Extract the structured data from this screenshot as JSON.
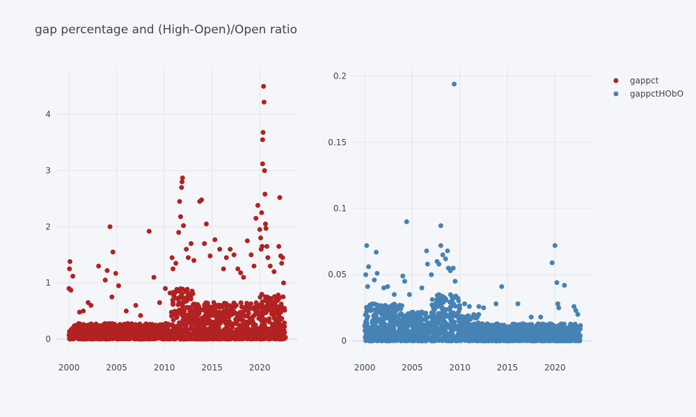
{
  "title": "gap percentage and (High-Open)/Open ratio",
  "colors": {
    "gappct": "#b22222",
    "gappctHObO": "#4682b4",
    "grid": "#e1e5ed",
    "background": "#f5f6f9"
  },
  "chart_data": [
    {
      "type": "scatter",
      "name": "gappct",
      "xlim": [
        1998.6,
        2024.0
      ],
      "ylim": [
        -0.15,
        4.8
      ],
      "x_ticks": [
        2000,
        2005,
        2010,
        2015,
        2020
      ],
      "x_tick_labels": [
        "2000",
        "2005",
        "2010",
        "2015",
        "2020"
      ],
      "y_ticks": [
        0,
        1,
        2,
        3,
        4
      ],
      "y_tick_labels": [
        "0",
        "1",
        "2",
        "3",
        "4"
      ],
      "grid": true,
      "series": [
        {
          "name": "gappct",
          "x_range": [
            2000.0,
            2022.7
          ],
          "points": [
            [
              2000.1,
              1.38
            ],
            [
              2000.05,
              1.25
            ],
            [
              2000.0,
              0.9
            ],
            [
              2000.2,
              0.87
            ],
            [
              2000.4,
              1.12
            ],
            [
              2001.1,
              0.48
            ],
            [
              2001.5,
              0.5
            ],
            [
              2002.0,
              0.65
            ],
            [
              2002.3,
              0.6
            ],
            [
              2003.1,
              1.3
            ],
            [
              2003.8,
              1.05
            ],
            [
              2004.0,
              1.22
            ],
            [
              2004.3,
              2.0
            ],
            [
              2004.6,
              1.55
            ],
            [
              2004.5,
              0.75
            ],
            [
              2004.9,
              1.17
            ],
            [
              2005.2,
              0.95
            ],
            [
              2006.0,
              0.5
            ],
            [
              2007.0,
              0.6
            ],
            [
              2007.5,
              0.42
            ],
            [
              2008.4,
              1.92
            ],
            [
              2008.9,
              1.1
            ],
            [
              2009.5,
              0.65
            ],
            [
              2010.1,
              0.9
            ],
            [
              2010.6,
              0.82
            ],
            [
              2010.8,
              1.45
            ],
            [
              2010.9,
              1.25
            ],
            [
              2011.2,
              1.35
            ],
            [
              2011.5,
              1.9
            ],
            [
              2011.6,
              2.45
            ],
            [
              2011.7,
              2.18
            ],
            [
              2011.9,
              2.87
            ],
            [
              2011.85,
              2.8
            ],
            [
              2011.8,
              2.7
            ],
            [
              2012.0,
              2.02
            ],
            [
              2012.3,
              1.6
            ],
            [
              2012.5,
              1.45
            ],
            [
              2012.8,
              1.7
            ],
            [
              2013.1,
              1.4
            ],
            [
              2013.7,
              2.45
            ],
            [
              2013.9,
              2.48
            ],
            [
              2014.2,
              1.7
            ],
            [
              2014.4,
              2.05
            ],
            [
              2014.8,
              1.48
            ],
            [
              2015.3,
              1.77
            ],
            [
              2015.8,
              1.6
            ],
            [
              2016.2,
              1.25
            ],
            [
              2016.5,
              1.45
            ],
            [
              2016.9,
              1.6
            ],
            [
              2017.3,
              1.5
            ],
            [
              2017.7,
              1.25
            ],
            [
              2018.0,
              1.18
            ],
            [
              2018.3,
              1.1
            ],
            [
              2018.7,
              1.75
            ],
            [
              2019.1,
              1.5
            ],
            [
              2019.4,
              1.3
            ],
            [
              2019.6,
              2.15
            ],
            [
              2019.8,
              2.38
            ],
            [
              2020.0,
              1.95
            ],
            [
              2020.1,
              1.8
            ],
            [
              2020.15,
              1.6
            ],
            [
              2020.2,
              2.25
            ],
            [
              2020.25,
              1.65
            ],
            [
              2020.3,
              3.12
            ],
            [
              2020.3,
              3.55
            ],
            [
              2020.35,
              3.68
            ],
            [
              2020.4,
              4.5
            ],
            [
              2020.45,
              4.22
            ],
            [
              2020.5,
              3.0
            ],
            [
              2020.55,
              2.58
            ],
            [
              2020.6,
              2.05
            ],
            [
              2020.65,
              1.97
            ],
            [
              2020.75,
              1.65
            ],
            [
              2020.85,
              1.45
            ],
            [
              2021.1,
              1.3
            ],
            [
              2021.5,
              1.2
            ],
            [
              2022.0,
              1.65
            ],
            [
              2022.1,
              2.52
            ],
            [
              2022.2,
              1.48
            ],
            [
              2022.4,
              1.45
            ],
            [
              2022.5,
              1.0
            ],
            [
              2022.3,
              1.35
            ]
          ]
        }
      ]
    },
    {
      "type": "scatter",
      "name": "gappctHObO",
      "xlim": [
        1998.6,
        2024.0
      ],
      "ylim": [
        -0.005,
        0.205
      ],
      "x_ticks": [
        2000,
        2005,
        2010,
        2015,
        2020
      ],
      "x_tick_labels": [
        "2000",
        "2005",
        "2010",
        "2015",
        "2020"
      ],
      "y_ticks": [
        0,
        0.05,
        0.1,
        0.15,
        0.2
      ],
      "y_tick_labels": [
        "0",
        "0.05",
        "0.1",
        "0.15",
        "0.2"
      ],
      "grid": true,
      "series": [
        {
          "name": "gappctHObO",
          "x_range": [
            2000.0,
            2022.7
          ],
          "points": [
            [
              2000.2,
              0.072
            ],
            [
              2000.4,
              0.056
            ],
            [
              2000.1,
              0.05
            ],
            [
              2000.3,
              0.041
            ],
            [
              2001.2,
              0.067
            ],
            [
              2001.3,
              0.051
            ],
            [
              2001.0,
              0.046
            ],
            [
              2002.0,
              0.04
            ],
            [
              2002.4,
              0.041
            ],
            [
              2003.1,
              0.035
            ],
            [
              2004.0,
              0.049
            ],
            [
              2004.4,
              0.09
            ],
            [
              2004.2,
              0.045
            ],
            [
              2004.7,
              0.035
            ],
            [
              2006.0,
              0.04
            ],
            [
              2006.5,
              0.068
            ],
            [
              2006.6,
              0.058
            ],
            [
              2007.0,
              0.05
            ],
            [
              2007.6,
              0.06
            ],
            [
              2007.8,
              0.058
            ],
            [
              2008.0,
              0.087
            ],
            [
              2008.0,
              0.072
            ],
            [
              2008.2,
              0.065
            ],
            [
              2008.5,
              0.062
            ],
            [
              2008.7,
              0.068
            ],
            [
              2008.8,
              0.055
            ],
            [
              2009.0,
              0.053
            ],
            [
              2009.3,
              0.055
            ],
            [
              2009.4,
              0.194
            ],
            [
              2009.5,
              0.045
            ],
            [
              2009.8,
              0.032
            ],
            [
              2010.5,
              0.028
            ],
            [
              2011.0,
              0.026
            ],
            [
              2012.0,
              0.026
            ],
            [
              2012.5,
              0.025
            ],
            [
              2013.8,
              0.028
            ],
            [
              2014.4,
              0.041
            ],
            [
              2016.1,
              0.028
            ],
            [
              2017.5,
              0.018
            ],
            [
              2018.5,
              0.018
            ],
            [
              2019.7,
              0.059
            ],
            [
              2020.0,
              0.072
            ],
            [
              2020.2,
              0.044
            ],
            [
              2020.3,
              0.028
            ],
            [
              2020.4,
              0.025
            ],
            [
              2021.0,
              0.042
            ],
            [
              2022.0,
              0.026
            ],
            [
              2022.2,
              0.023
            ],
            [
              2022.4,
              0.02
            ]
          ]
        }
      ]
    }
  ],
  "legend": {
    "placement": "top-right",
    "items": [
      {
        "label": "gappct",
        "color": "#b22222"
      },
      {
        "label": "gappctHObO",
        "color": "#4682b4"
      }
    ]
  }
}
